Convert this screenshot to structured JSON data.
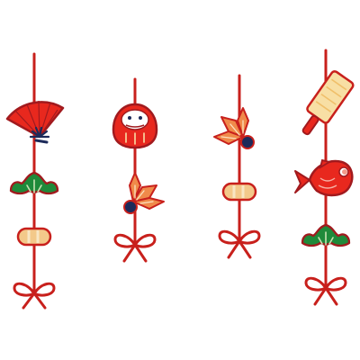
{
  "scene": {
    "subject": "hanging-ornaments",
    "background": "#ffffff",
    "ornament_count": 4
  },
  "palette": {
    "red": "#e8281e",
    "outline": "#a11a1e",
    "string": "#c8201c",
    "navy": "#1c2a5a",
    "green": "#1f8a3a",
    "orange": "#f08a4a",
    "cream": "#f8dfa4",
    "sand": "#f3c98a"
  },
  "ornaments": [
    {
      "name": "strand-1",
      "charms": [
        "folding-fan",
        "pine-branch",
        "bead",
        "knot-bow"
      ]
    },
    {
      "name": "strand-2",
      "charms": [
        "daruma-doll",
        "maple-leaf",
        "knot-bow"
      ]
    },
    {
      "name": "strand-3",
      "charms": [
        "maple-leaf",
        "bead",
        "knot-bow"
      ]
    },
    {
      "name": "strand-4",
      "charms": [
        "battledore",
        "sea-bream-fish",
        "pine-branch",
        "knot-bow"
      ]
    }
  ]
}
